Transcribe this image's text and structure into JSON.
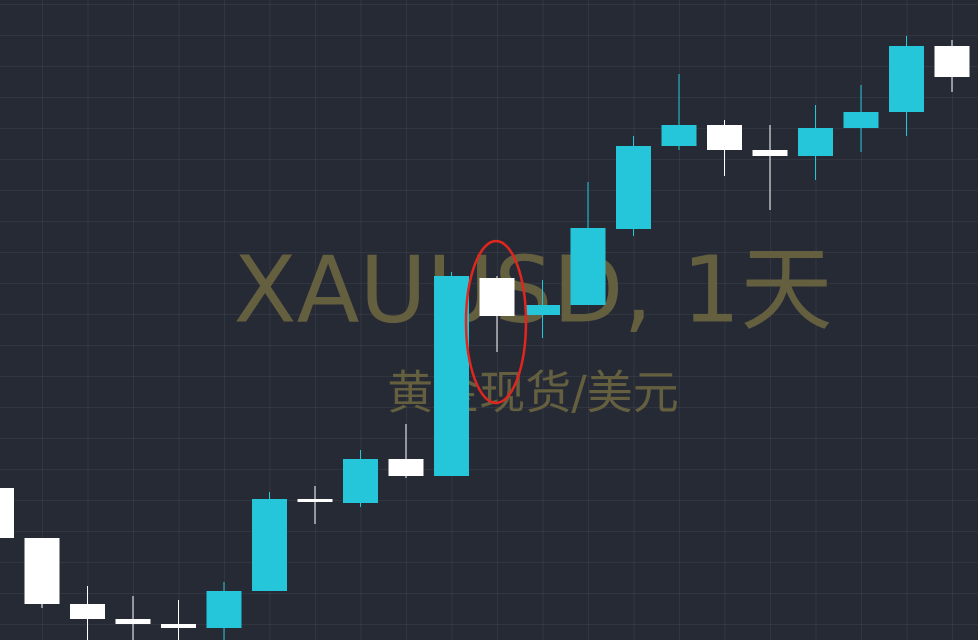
{
  "chart_data": {
    "type": "candlestick",
    "watermark_title": "XAUUSD, 1天",
    "watermark_subtitle": "黄金现货/美元",
    "categories": [
      null,
      null,
      null,
      null,
      null,
      null,
      null,
      null,
      null,
      null,
      null,
      null,
      null,
      null,
      null,
      null,
      null,
      null,
      null,
      null,
      null,
      null
    ],
    "open": [
      152,
      102,
      36,
      21,
      16,
      12,
      49,
      141,
      137,
      181,
      164,
      362,
      325,
      335,
      411,
      494,
      515,
      490,
      484,
      512,
      528,
      594
    ],
    "high": [
      152,
      102,
      54,
      44,
      40,
      58,
      148,
      154,
      190,
      216,
      368,
      364,
      360,
      458,
      504,
      566,
      520,
      515,
      535,
      555,
      604,
      600
    ],
    "low": [
      102,
      32,
      0,
      0,
      0,
      0,
      49,
      116,
      133,
      162,
      164,
      288,
      302,
      335,
      404,
      490,
      464,
      430,
      460,
      488,
      504,
      548
    ],
    "close": [
      102,
      36,
      21,
      16,
      12,
      49,
      141,
      138,
      181,
      164,
      364,
      324,
      335,
      412,
      494,
      515,
      490,
      484,
      512,
      528,
      594,
      563
    ],
    "up_color": "#26c6da",
    "down_color": "#ffffff",
    "ylim": [
      0,
      640
    ]
  }
}
